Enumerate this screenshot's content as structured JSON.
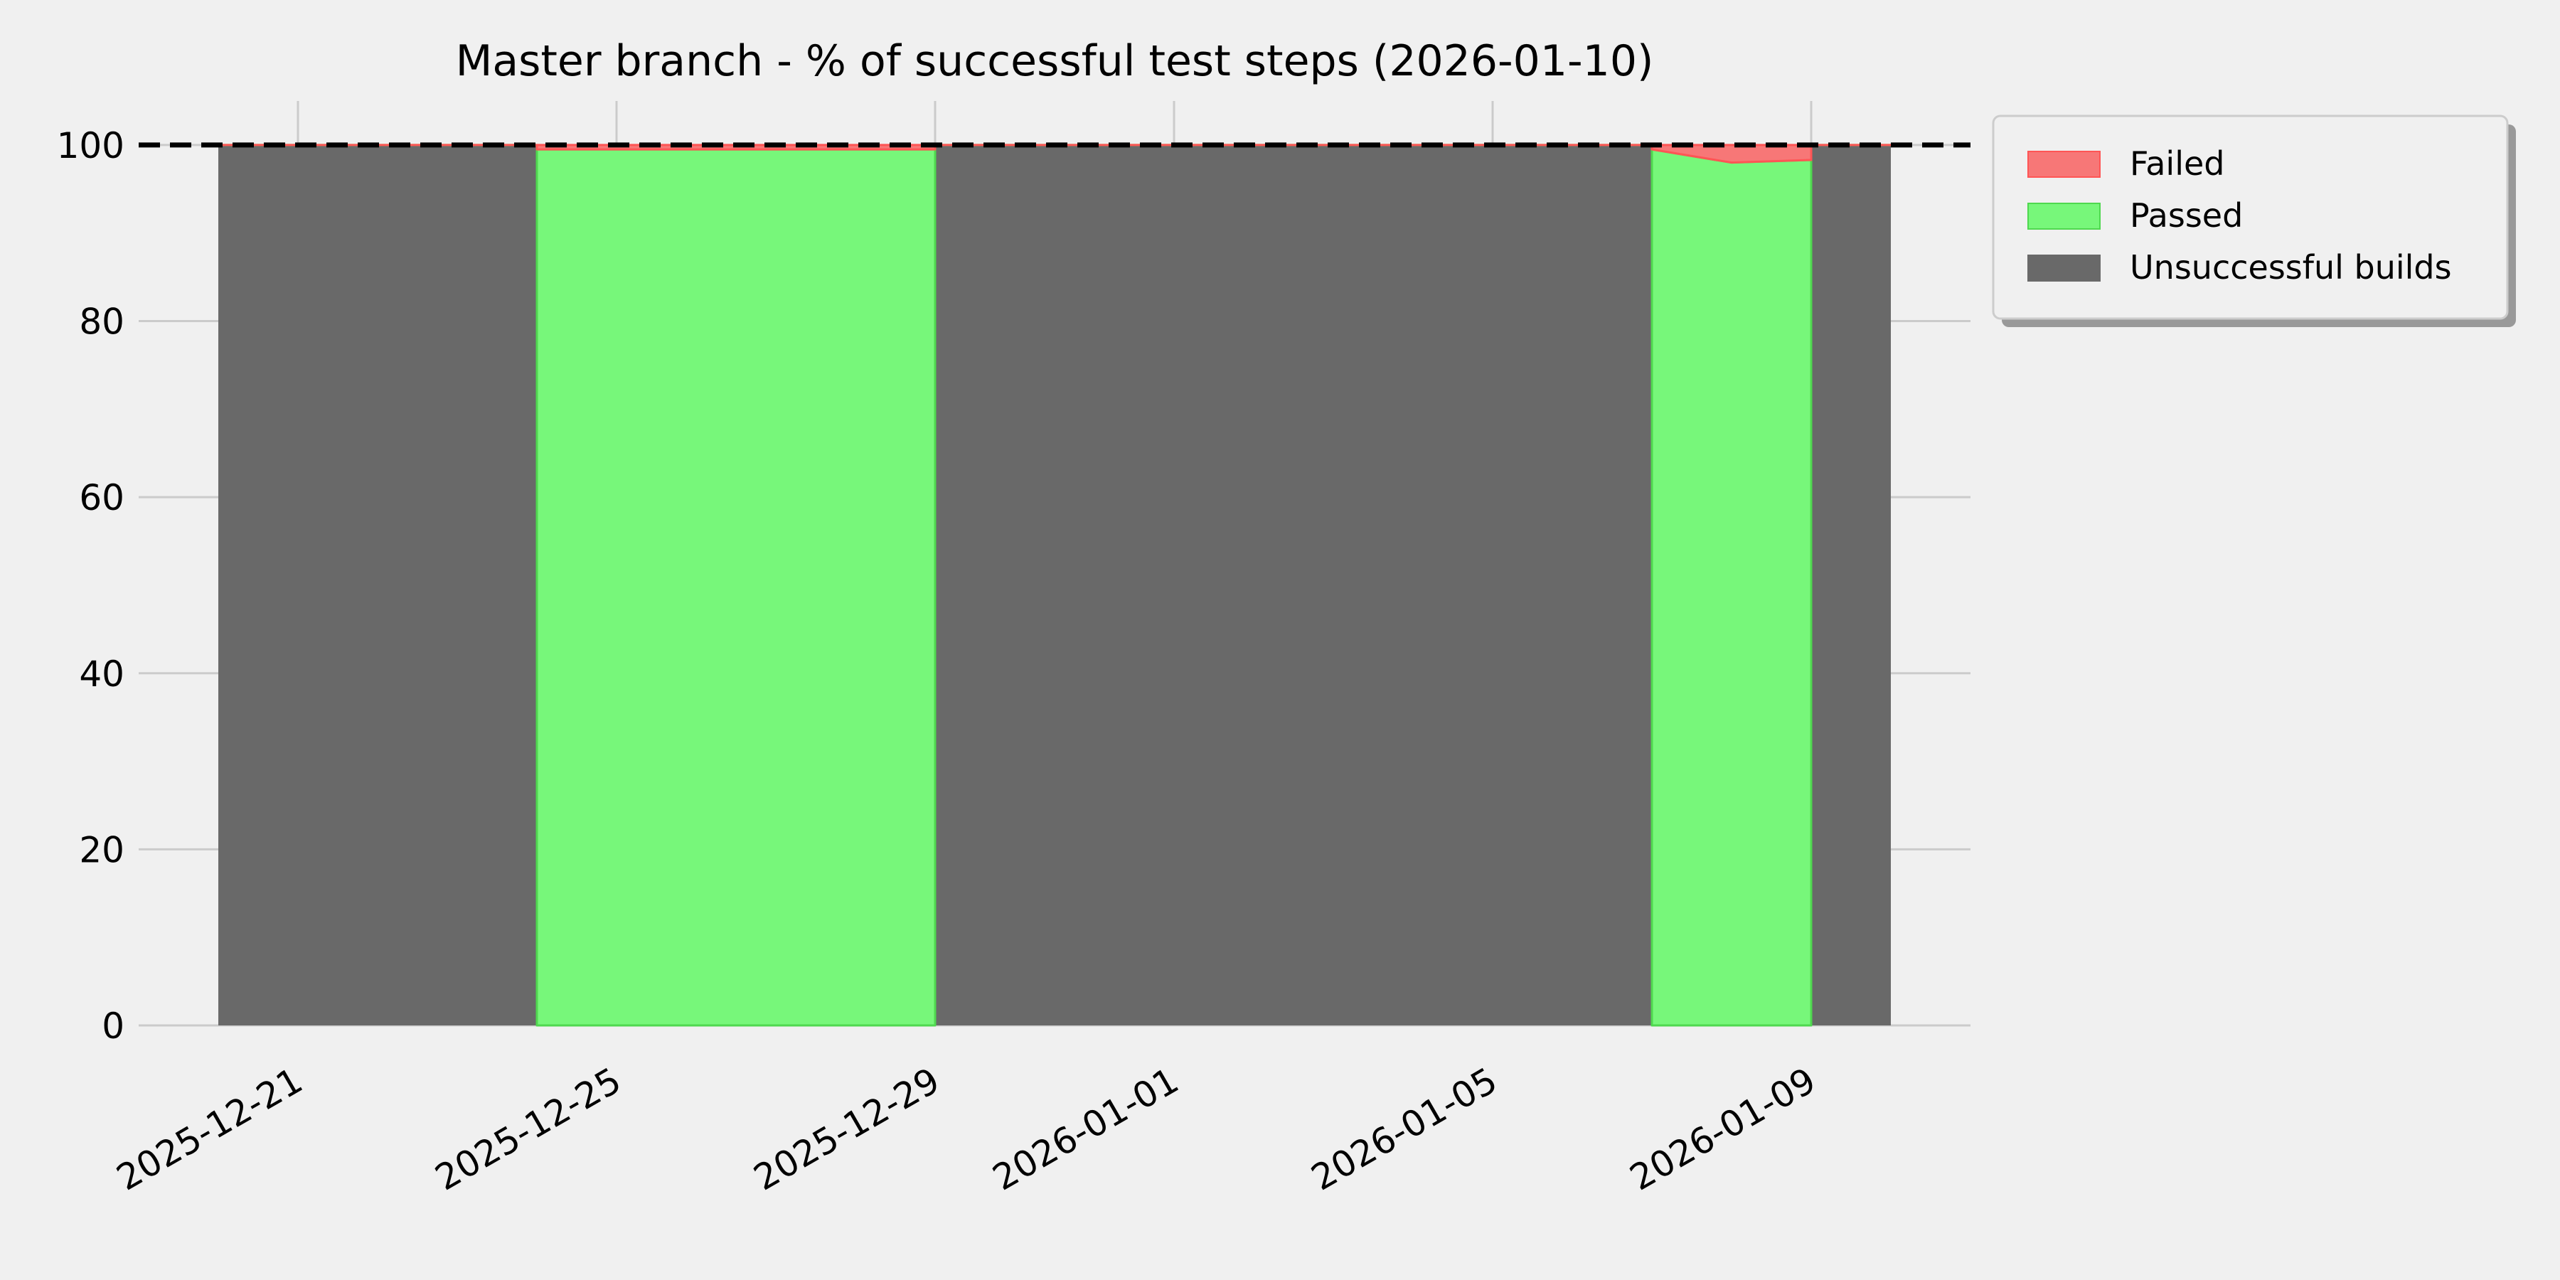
{
  "chart_data": {
    "type": "area",
    "stacked": true,
    "title": "Master branch - % of successful test steps (2026-01-10)",
    "xlabel": "",
    "ylabel": "",
    "xlim": [
      "2025-12-19",
      "2026-01-11"
    ],
    "ylim": [
      0,
      105
    ],
    "x_ticks": [
      "2025-12-21",
      "2025-12-25",
      "2025-12-29",
      "2026-01-01",
      "2026-01-05",
      "2026-01-09"
    ],
    "y_ticks": [
      0,
      20,
      40,
      60,
      80,
      100
    ],
    "grid": true,
    "reference_line": {
      "y": 100,
      "style": "dashed",
      "color": "#000000"
    },
    "legend_position": "outside-top-right",
    "x": [
      "2025-12-20",
      "2025-12-24",
      "2025-12-24",
      "2025-12-29",
      "2025-12-29",
      "2026-01-07",
      "2026-01-07",
      "2026-01-08",
      "2026-01-09",
      "2026-01-09",
      "2026-01-10"
    ],
    "series": [
      {
        "name": "Unsuccessful builds",
        "color": "#696969",
        "values": [
          100,
          100,
          0,
          0,
          100,
          100,
          0,
          0,
          0,
          100,
          100
        ]
      },
      {
        "name": "Passed",
        "color": "#77f77a",
        "values": [
          0,
          0,
          99.5,
          99.5,
          0,
          0,
          99.5,
          98.0,
          98.3,
          0,
          0
        ]
      },
      {
        "name": "Failed",
        "color": "#f77777",
        "values": [
          0,
          0,
          0.5,
          0.5,
          0,
          0,
          0.5,
          2.0,
          1.7,
          0,
          0
        ]
      }
    ],
    "legend_order": [
      "Failed",
      "Passed",
      "Unsuccessful builds"
    ]
  }
}
